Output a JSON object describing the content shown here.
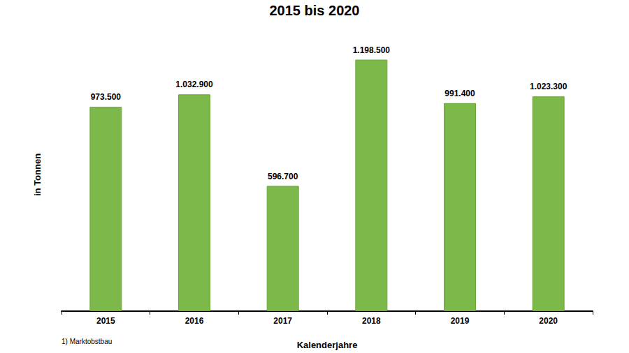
{
  "chart_data": {
    "type": "bar",
    "title": "2015 bis 2020",
    "x_label": "Kalenderjahre",
    "y_label": "in Tonnen",
    "footnote": "1) Marktobstbau",
    "categories": [
      "2015",
      "2016",
      "2017",
      "2018",
      "2019",
      "2020"
    ],
    "values": [
      973500,
      1032900,
      596700,
      1198500,
      991400,
      1023300
    ],
    "value_labels": [
      "973.500",
      "1.032.900",
      "596.700",
      "1.198.500",
      "991.400",
      "1.023.300"
    ],
    "color": "#7cb84a",
    "ylim": [
      0,
      1300000
    ],
    "yticks": [
      0,
      1300000
    ],
    "grid": false,
    "data_labels": true,
    "tick_labels": "x"
  }
}
